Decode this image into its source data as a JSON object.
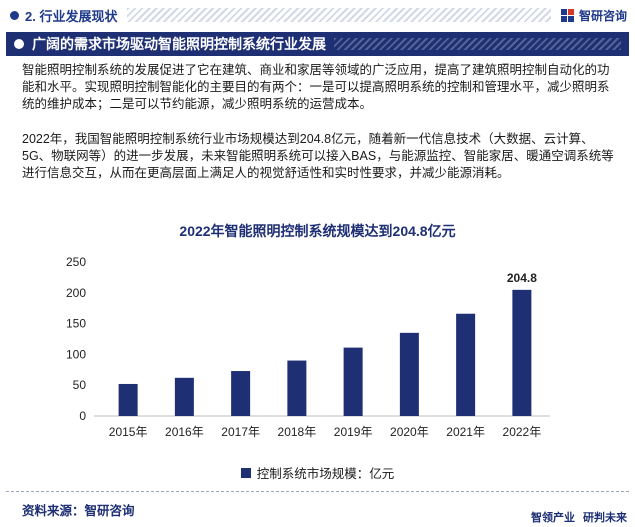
{
  "header": {
    "section_label": "2. 行业发展现状",
    "brand_name": "智研咨询"
  },
  "banner": {
    "title": "广阔的需求市场驱动智能照明控制系统行业发展"
  },
  "body": {
    "paragraph1": "智能照明控制系统的发展促进了它在建筑、商业和家居等领域的广泛应用，提高了建筑照明控制自动化的功能和水平。实现照明控制智能化的主要目的有两个：一是可以提高照明系统的控制和管理水平，减少照明系统的维护成本；二是可以节约能源，减少照明系统的运营成本。",
    "paragraph2": "2022年，我国智能照明控制系统行业市场规模达到204.8亿元，随着新一代信息技术（大数据、云计算、5G、物联网等）的进一步发展，未来智能照明系统可以接入BAS，与能源监控、智能家居、暖通空调系统等进行信息交互，从而在更高层面上满足人的视觉舒适性和实时性要求，并减少能源消耗。"
  },
  "chart_data": {
    "type": "bar",
    "title": "2022年智能照明控制系统规模达到204.8亿元",
    "categories": [
      "2015年",
      "2016年",
      "2017年",
      "2018年",
      "2019年",
      "2020年",
      "2021年",
      "2022年"
    ],
    "series": [
      {
        "name": "控制系统市场规模：亿元",
        "values": [
          52,
          62,
          73,
          90,
          111,
          135,
          166,
          204.8
        ]
      }
    ],
    "data_labels": [
      "",
      "",
      "",
      "",
      "",
      "",
      "",
      "204.8"
    ],
    "yticks": [
      0,
      50,
      100,
      150,
      200,
      250
    ],
    "ylim": [
      0,
      250
    ],
    "legend_position": "bottom",
    "grid": false,
    "bar_color": "#1e2f74"
  },
  "footer": {
    "source": "资料来源：智研咨询",
    "brand_left": "智领产业",
    "brand_right": "研判未来"
  }
}
